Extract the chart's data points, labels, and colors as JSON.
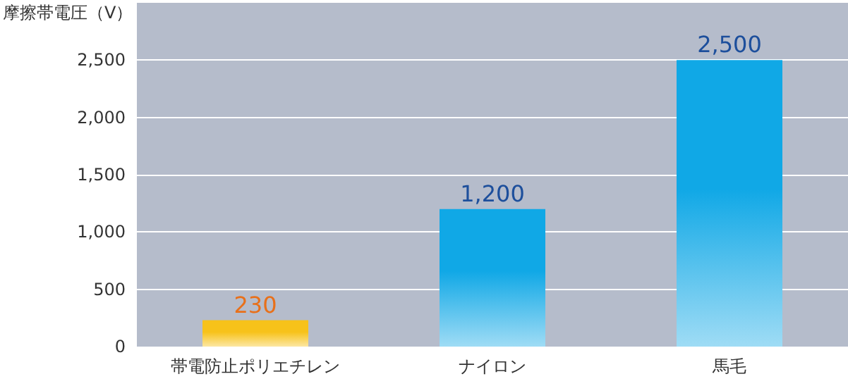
{
  "chart_data": {
    "type": "bar",
    "ylabel": "摩擦帯電圧（V）",
    "categories": [
      "帯電防止ポリエチレン",
      "ナイロン",
      "馬毛"
    ],
    "values": [
      230,
      1200,
      2500
    ],
    "colors": [
      "#f7c21a",
      "#10a8e6",
      "#10a8e6"
    ],
    "ylim": [
      0,
      3000
    ],
    "yticks": [
      0,
      500,
      {
        "value": 1000,
        "label": "1,000"
      },
      {
        "value": 1500,
        "label": "1,500"
      },
      {
        "value": 2000,
        "label": "2,000"
      },
      {
        "value": 2500,
        "label": "2,500"
      }
    ],
    "grid": "y",
    "value_labels": [
      "230",
      "1,200",
      "2,500"
    ]
  }
}
